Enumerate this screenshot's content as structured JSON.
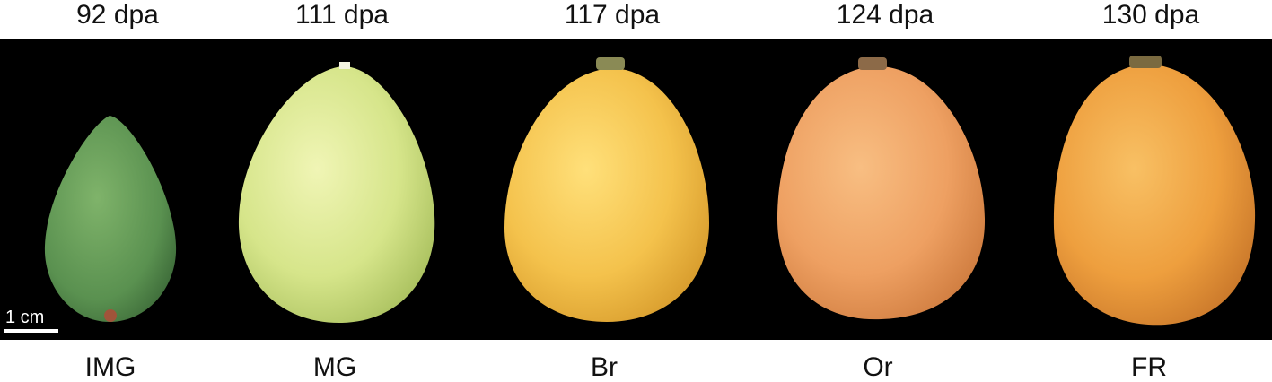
{
  "stages": [
    {
      "dpa": "92 dpa",
      "code": "IMG",
      "color": "#5f9a52"
    },
    {
      "dpa": "111 dpa",
      "code": "MG",
      "color": "#d4e48a"
    },
    {
      "dpa": "117 dpa",
      "code": "Br",
      "color": "#f2c24e"
    },
    {
      "dpa": "124 dpa",
      "code": "Or",
      "color": "#f0a060"
    },
    {
      "dpa": "130 dpa",
      "code": "FR",
      "color": "#f0a040"
    }
  ],
  "scale_bar": {
    "label": "1 cm"
  }
}
